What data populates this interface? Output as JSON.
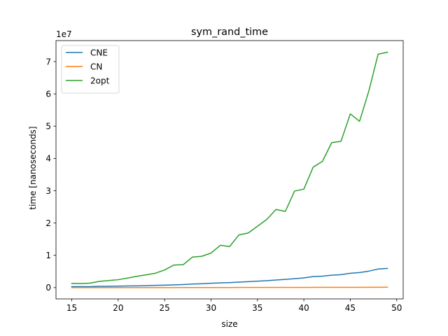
{
  "chart_data": {
    "type": "line",
    "title": "sym_rand_time",
    "xlabel": "size",
    "ylabel": "time [nanoseconds]",
    "y_offset_label": "1e7",
    "xlim": [
      13.3,
      50.7
    ],
    "ylim": [
      -0.35,
      7.65
    ],
    "x_ticks": [
      15,
      20,
      25,
      30,
      35,
      40,
      45,
      50
    ],
    "y_ticks": [
      0,
      1,
      2,
      3,
      4,
      5,
      6,
      7
    ],
    "grid": false,
    "legend_position": "upper-left",
    "x": [
      15,
      16,
      17,
      18,
      19,
      20,
      21,
      22,
      23,
      24,
      25,
      26,
      27,
      28,
      29,
      30,
      31,
      32,
      33,
      34,
      35,
      36,
      37,
      38,
      39,
      40,
      41,
      42,
      43,
      44,
      45,
      46,
      47,
      48,
      49
    ],
    "series": [
      {
        "name": "CNE",
        "color": "#1f77b4",
        "values": [
          0.03,
          0.03,
          0.03,
          0.04,
          0.04,
          0.045,
          0.05,
          0.055,
          0.06,
          0.07,
          0.075,
          0.085,
          0.095,
          0.11,
          0.12,
          0.135,
          0.145,
          0.155,
          0.17,
          0.185,
          0.2,
          0.215,
          0.235,
          0.255,
          0.275,
          0.3,
          0.34,
          0.355,
          0.385,
          0.4,
          0.445,
          0.465,
          0.51,
          0.575,
          0.595
        ]
      },
      {
        "name": "CN",
        "color": "#ff7f0e",
        "values": [
          0.0,
          0.0,
          0.0,
          0.0,
          0.0,
          0.0,
          0.0,
          0.0,
          0.0,
          0.0,
          0.0,
          0.0,
          0.002,
          0.002,
          0.002,
          0.003,
          0.003,
          0.003,
          0.004,
          0.004,
          0.004,
          0.005,
          0.005,
          0.005,
          0.006,
          0.006,
          0.007,
          0.007,
          0.008,
          0.008,
          0.009,
          0.009,
          0.01,
          0.011,
          0.012
        ]
      },
      {
        "name": "2opt",
        "color": "#2ca02c",
        "values": [
          0.13,
          0.125,
          0.14,
          0.195,
          0.22,
          0.245,
          0.295,
          0.35,
          0.395,
          0.445,
          0.545,
          0.7,
          0.71,
          0.945,
          0.97,
          1.07,
          1.31,
          1.27,
          1.63,
          1.69,
          1.9,
          2.11,
          2.42,
          2.36,
          2.99,
          3.05,
          3.73,
          3.91,
          4.49,
          4.53,
          5.38,
          5.15,
          6.09,
          7.23,
          7.29
        ]
      }
    ]
  }
}
